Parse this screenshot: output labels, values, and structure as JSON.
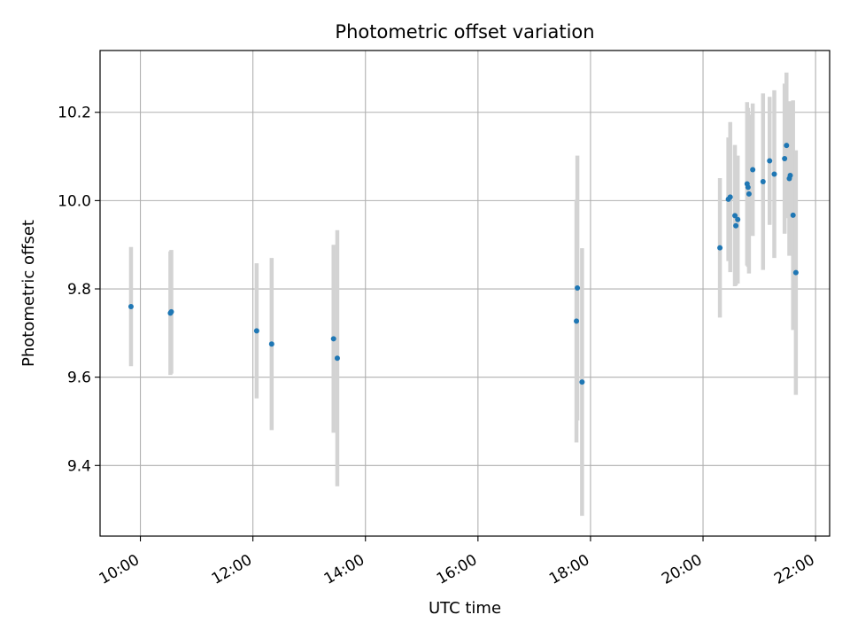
{
  "chart_data": {
    "type": "scatter",
    "title": "Photometric offset variation",
    "xlabel": "UTC time",
    "ylabel": "Photometric offset",
    "xlim": [
      "09:17",
      "22:15"
    ],
    "ylim": [
      9.24,
      10.34
    ],
    "x_ticks": [
      "10:00",
      "12:00",
      "14:00",
      "16:00",
      "18:00",
      "20:00",
      "22:00"
    ],
    "y_ticks": [
      9.4,
      9.6,
      9.8,
      10.0,
      10.2
    ],
    "y_tick_labels": [
      "9.4",
      "9.6",
      "9.8",
      "10.0",
      "10.2"
    ],
    "grid": true,
    "colors": {
      "points": "#1f77b4",
      "errorbars": "#d3d3d3",
      "grid": "#b0b0b0"
    },
    "series": [
      {
        "x": [
          "09:50",
          "10:32",
          "10:33",
          "12:04",
          "12:20",
          "13:26",
          "13:30",
          "17:45",
          "17:46",
          "17:51",
          "20:18",
          "20:27",
          "20:29",
          "20:34",
          "20:35",
          "20:37",
          "20:47",
          "20:48",
          "20:49",
          "20:53",
          "21:04",
          "21:11",
          "21:16",
          "21:27",
          "21:29",
          "21:32",
          "21:33",
          "21:36",
          "21:39"
        ],
        "y": [
          9.76,
          9.745,
          9.748,
          9.705,
          9.675,
          9.687,
          9.643,
          9.727,
          9.802,
          9.589,
          9.893,
          10.003,
          10.008,
          9.966,
          9.943,
          9.957,
          10.038,
          10.03,
          10.015,
          10.07,
          10.043,
          10.09,
          10.06,
          10.095,
          10.125,
          10.05,
          10.057,
          9.967,
          9.837
        ],
        "yerr": [
          0.135,
          0.14,
          0.14,
          0.153,
          0.195,
          0.213,
          0.29,
          0.275,
          0.3,
          0.303,
          0.158,
          0.14,
          0.17,
          0.16,
          0.135,
          0.145,
          0.185,
          0.18,
          0.18,
          0.15,
          0.2,
          0.145,
          0.19,
          0.17,
          0.165,
          0.175,
          0.16,
          0.26,
          0.277
        ]
      }
    ]
  }
}
